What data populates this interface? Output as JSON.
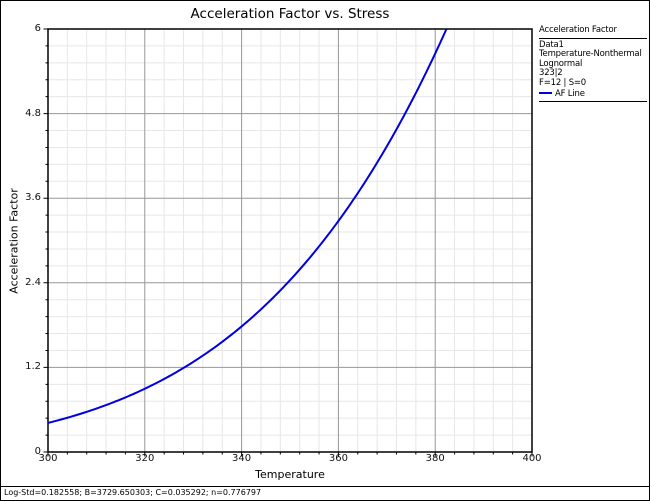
{
  "colors": {
    "curve": "#0000e0",
    "grid_major": "#979797",
    "grid_minor": "#e7e7e7",
    "axis": "#000000",
    "text": "#000000"
  },
  "chart_data": {
    "type": "line",
    "title": "Acceleration Factor vs. Stress",
    "xlabel": "Temperature",
    "ylabel": "Acceleration Factor",
    "xlim": [
      300,
      400
    ],
    "ylim": [
      0,
      6
    ],
    "x_ticks": [
      300,
      320,
      340,
      360,
      380,
      400
    ],
    "y_ticks": [
      0,
      1.2,
      2.4,
      3.6,
      4.8,
      6
    ],
    "minor_divisions_per_major": 5,
    "grid": true,
    "legend_position": "top-right",
    "series": [
      {
        "name": "AF Line",
        "color": "#0000e0",
        "model": "Temperature-Nonthermal acceleration factor",
        "use_stress": "323|2",
        "params": {
          "B": 3729.650303,
          "use_temperature": 323
        },
        "points": [
          [
            300,
            0.41
          ],
          [
            305,
            0.51
          ],
          [
            310,
            0.62
          ],
          [
            315,
            0.75
          ],
          [
            320,
            0.9
          ],
          [
            323,
            1.0
          ],
          [
            325,
            1.07
          ],
          [
            330,
            1.28
          ],
          [
            335,
            1.51
          ],
          [
            340,
            1.78
          ],
          [
            345,
            2.09
          ],
          [
            350,
            2.44
          ],
          [
            355,
            2.83
          ],
          [
            360,
            3.28
          ],
          [
            365,
            3.78
          ],
          [
            370,
            4.34
          ],
          [
            375,
            4.96
          ],
          [
            380,
            5.65
          ],
          [
            382.3,
            6.0
          ]
        ]
      }
    ]
  },
  "legend": {
    "title": "Acceleration Factor",
    "lines": [
      "Data1",
      "Temperature-Nonthermal",
      "Lognormal",
      "323|2",
      "F=12 | S=0"
    ],
    "af_line_label": "AF Line"
  },
  "status_bar": {
    "text": "Log-Std=0.182558; B=3729.650303; C=0.035292; n=0.776797"
  }
}
